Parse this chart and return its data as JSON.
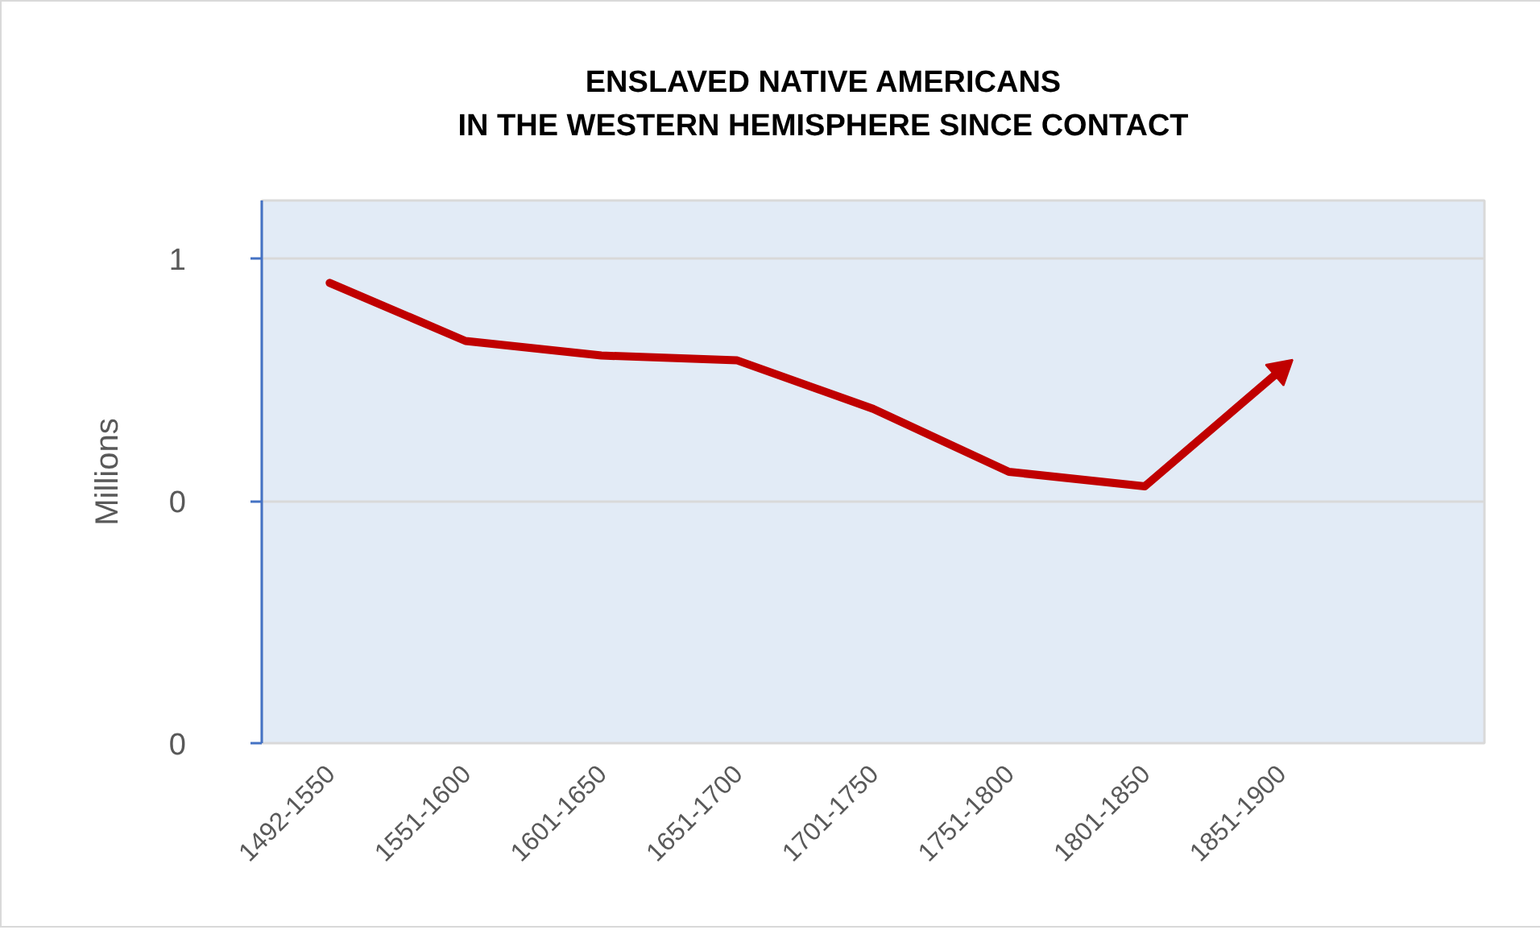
{
  "chart_data": {
    "type": "line",
    "title": "ENSLAVED NATIVE AMERICANS\nIN THE WESTERN HEMISPHERE SINCE CONTACT",
    "ylabel": "Millions",
    "categories": [
      "1492-1550",
      "1551-1600",
      "1601-1650",
      "1651-1700",
      "1701-1750",
      "1751-1800",
      "1801-1850",
      "1851-1900",
      null
    ],
    "series": [
      {
        "color": "#c00000",
        "values": [
          0.95,
          0.83,
          0.8,
          0.79,
          0.69,
          0.56,
          0.53,
          0.77,
          null
        ]
      }
    ],
    "ylim": [
      0,
      1.12
    ],
    "yticks": [
      {
        "value": 0,
        "label": "0"
      },
      {
        "value": 0.5,
        "label": "0"
      },
      {
        "value": 1,
        "label": "1"
      }
    ],
    "grid": "y",
    "marker": "none",
    "line_style": "solid"
  }
}
